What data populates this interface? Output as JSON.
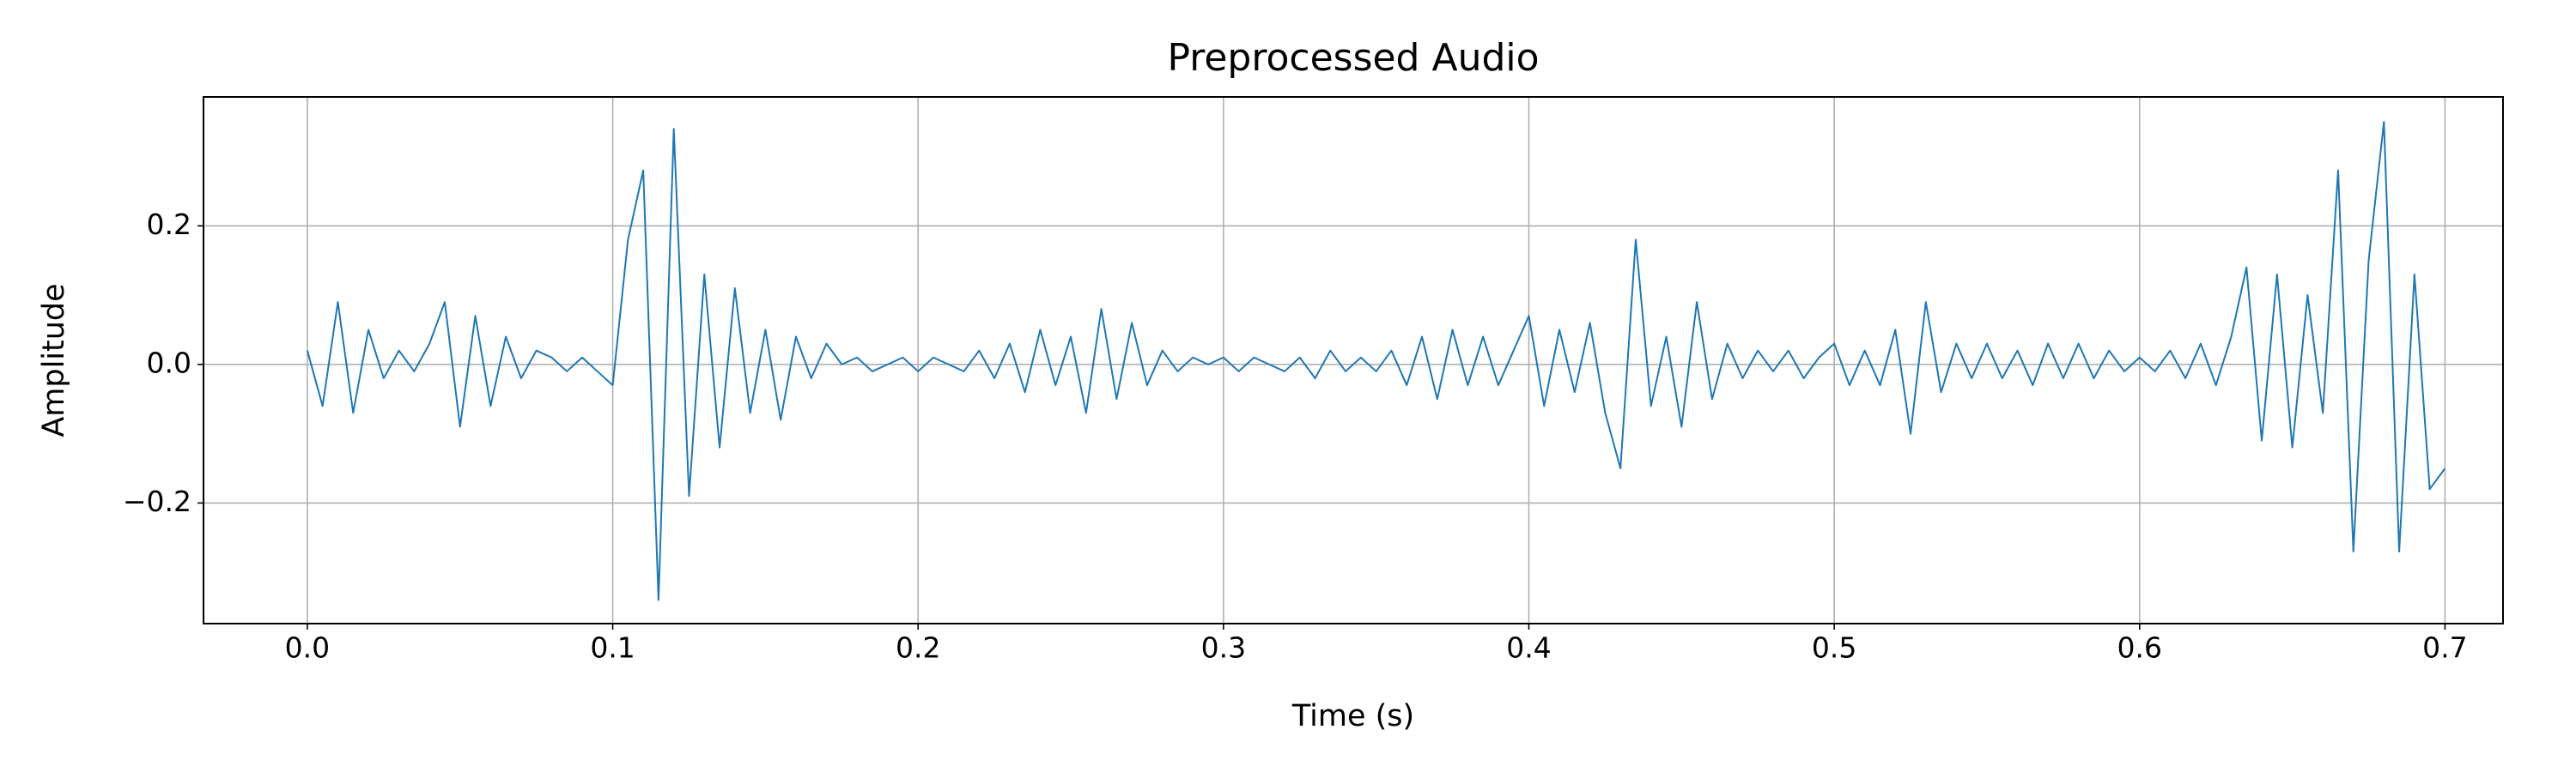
{
  "chart_data": {
    "type": "line",
    "title": "Preprocessed Audio",
    "x_label": "Time (s)",
    "y_label": "Amplitude",
    "color": "#1f77b4",
    "grid": true,
    "xlim": [
      -0.034,
      0.719
    ],
    "ylim": [
      -0.374,
      0.386
    ],
    "xticks": [
      {
        "value": 0,
        "label": "0.0"
      },
      0.1,
      0.2,
      0.3,
      0.4,
      0.5,
      0.6,
      0.7
    ],
    "yticks": [
      {
        "value": -0.2,
        "label": "−0.2"
      },
      {
        "value": 0,
        "label": "0.0"
      },
      0.2
    ],
    "x": [
      0,
      0.005,
      0.01,
      0.015,
      0.02,
      0.025,
      0.03,
      0.035,
      0.04,
      0.045,
      0.05,
      0.055,
      0.06,
      0.065,
      0.07,
      0.075,
      0.08,
      0.085,
      0.09,
      0.095,
      0.1,
      0.105,
      0.11,
      0.115,
      0.12,
      0.125,
      0.13,
      0.135,
      0.14,
      0.145,
      0.15,
      0.155,
      0.16,
      0.165,
      0.17,
      0.175,
      0.18,
      0.185,
      0.19,
      0.195,
      0.2,
      0.205,
      0.21,
      0.215,
      0.22,
      0.225,
      0.23,
      0.235,
      0.24,
      0.245,
      0.25,
      0.255,
      0.26,
      0.265,
      0.27,
      0.275,
      0.28,
      0.285,
      0.29,
      0.295,
      0.3,
      0.305,
      0.31,
      0.315,
      0.32,
      0.325,
      0.33,
      0.335,
      0.34,
      0.345,
      0.35,
      0.355,
      0.36,
      0.365,
      0.37,
      0.375,
      0.38,
      0.385,
      0.39,
      0.395,
      0.4,
      0.405,
      0.41,
      0.415,
      0.42,
      0.425,
      0.43,
      0.435,
      0.44,
      0.445,
      0.45,
      0.455,
      0.46,
      0.465,
      0.47,
      0.475,
      0.48,
      0.485,
      0.49,
      0.495,
      0.5,
      0.505,
      0.51,
      0.515,
      0.52,
      0.525,
      0.53,
      0.535,
      0.54,
      0.545,
      0.55,
      0.555,
      0.56,
      0.565,
      0.57,
      0.575,
      0.58,
      0.585,
      0.59,
      0.595,
      0.6,
      0.605,
      0.61,
      0.615,
      0.62,
      0.625,
      0.63,
      0.635,
      0.64,
      0.645,
      0.65,
      0.655,
      0.66,
      0.665,
      0.67,
      0.675,
      0.68,
      0.685,
      0.69,
      0.695,
      0.7
    ],
    "values": [
      0.02,
      -0.06,
      0.09,
      -0.07,
      0.05,
      -0.02,
      0.02,
      -0.01,
      0.03,
      0.09,
      -0.09,
      0.07,
      -0.06,
      0.04,
      -0.02,
      0.02,
      0.01,
      -0.01,
      0.01,
      -0.01,
      -0.03,
      0.18,
      0.28,
      -0.34,
      0.34,
      -0.19,
      0.13,
      -0.12,
      0.11,
      -0.07,
      0.05,
      -0.08,
      0.04,
      -0.02,
      0.03,
      0.0,
      0.01,
      -0.01,
      0.0,
      0.01,
      -0.01,
      0.01,
      0.0,
      -0.01,
      0.02,
      -0.02,
      0.03,
      -0.04,
      0.05,
      -0.03,
      0.04,
      -0.07,
      0.08,
      -0.05,
      0.06,
      -0.03,
      0.02,
      -0.01,
      0.01,
      0.0,
      0.01,
      -0.01,
      0.01,
      0.0,
      -0.01,
      0.01,
      -0.02,
      0.02,
      -0.01,
      0.01,
      -0.01,
      0.02,
      -0.03,
      0.04,
      -0.05,
      0.05,
      -0.03,
      0.04,
      -0.03,
      0.02,
      0.07,
      -0.06,
      0.05,
      -0.04,
      0.06,
      -0.07,
      -0.15,
      0.18,
      -0.06,
      0.04,
      -0.09,
      0.09,
      -0.05,
      0.03,
      -0.02,
      0.02,
      -0.01,
      0.02,
      -0.02,
      0.01,
      0.03,
      -0.03,
      0.02,
      -0.03,
      0.05,
      -0.1,
      0.09,
      -0.04,
      0.03,
      -0.02,
      0.03,
      -0.02,
      0.02,
      -0.03,
      0.03,
      -0.02,
      0.03,
      -0.02,
      0.02,
      -0.01,
      0.01,
      -0.01,
      0.02,
      -0.02,
      0.03,
      -0.03,
      0.04,
      0.14,
      -0.11,
      0.13,
      -0.12,
      0.1,
      -0.07,
      0.28,
      -0.27,
      0.15,
      0.35,
      -0.27,
      0.13,
      -0.18,
      -0.15
    ]
  }
}
